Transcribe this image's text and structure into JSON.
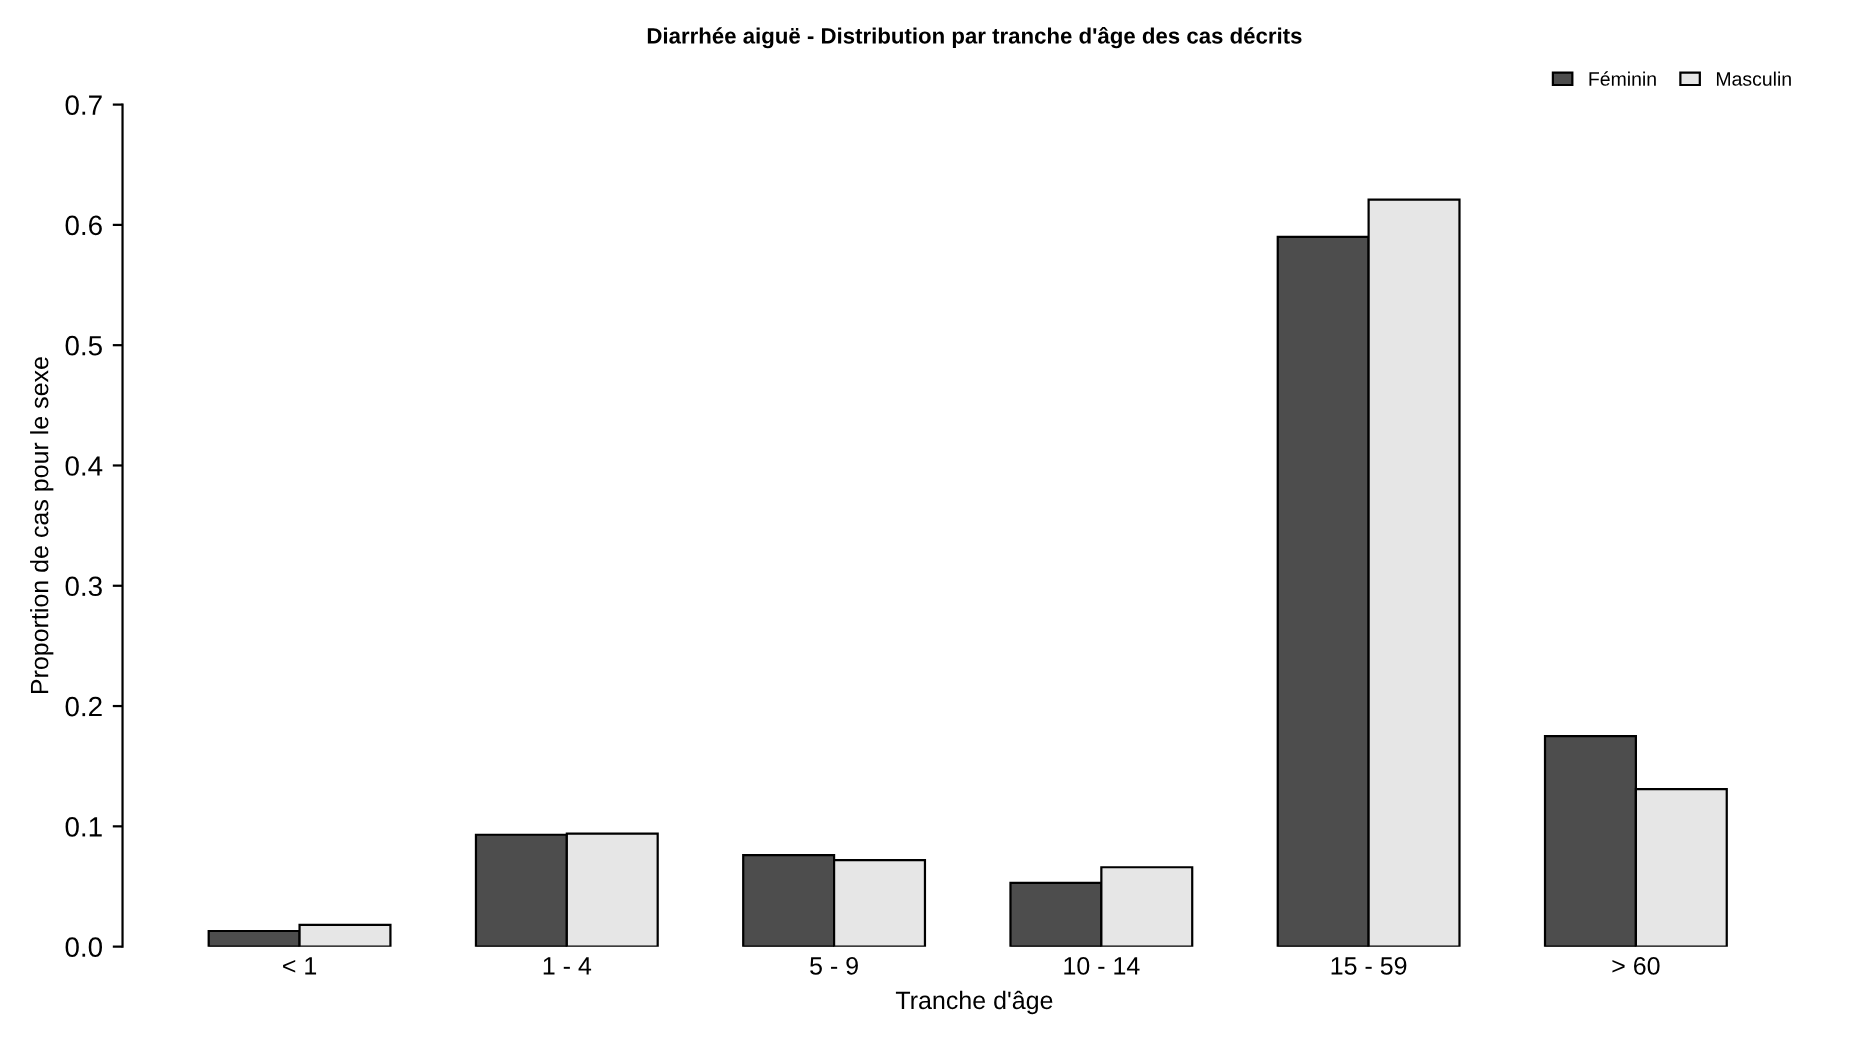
{
  "chart_data": {
    "type": "bar",
    "title": "Diarrhée aiguë - Distribution par tranche d'âge des cas décrits",
    "xlabel": "Tranche d'âge",
    "ylabel": "Proportion de cas pour le sexe",
    "categories": [
      "< 1",
      "1 - 4",
      "5 - 9",
      "10 - 14",
      "15 - 59",
      "> 60"
    ],
    "series": [
      {
        "name": "Féminin",
        "color": "#4d4d4d",
        "values": [
          0.013,
          0.093,
          0.076,
          0.053,
          0.59,
          0.175
        ]
      },
      {
        "name": "Masculin",
        "color": "#e6e6e6",
        "values": [
          0.018,
          0.094,
          0.072,
          0.066,
          0.621,
          0.131
        ]
      }
    ],
    "ylim": [
      0,
      0.7
    ],
    "yticks": [
      {
        "value": 0,
        "label": "0.0"
      },
      0.1,
      0.2,
      0.3,
      0.4,
      0.5,
      0.6,
      0.7
    ],
    "grid": false,
    "legend": "top right"
  }
}
